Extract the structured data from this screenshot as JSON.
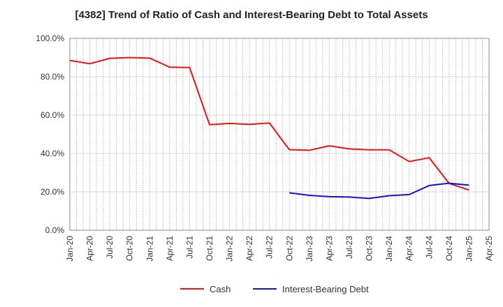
{
  "chart_data": {
    "type": "line",
    "title": "[4382]  Trend of Ratio of Cash and Interest-Bearing Debt to Total Assets",
    "xlabel": "",
    "ylabel": "",
    "x_ticks": [
      "Jan-20",
      "Apr-20",
      "Jul-20",
      "Oct-20",
      "Jan-21",
      "Apr-21",
      "Jul-21",
      "Oct-21",
      "Jan-22",
      "Apr-22",
      "Jul-22",
      "Oct-22",
      "Jan-23",
      "Apr-23",
      "Jul-23",
      "Oct-23",
      "Jan-24",
      "Apr-24",
      "Jul-24",
      "Oct-24",
      "Jan-25",
      "Apr-25"
    ],
    "y_ticks": [
      "0.0%",
      "20.0%",
      "40.0%",
      "60.0%",
      "80.0%",
      "100.0%"
    ],
    "ylim": [
      0,
      100
    ],
    "grid": true,
    "legend_position": "bottom",
    "series": [
      {
        "name": "Cash",
        "color": "#ee1111",
        "x": [
          "Jan-20",
          "Apr-20",
          "Jul-20",
          "Oct-20",
          "Jan-21",
          "Apr-21",
          "Jul-21",
          "Oct-21",
          "Jan-22",
          "Apr-22",
          "Jul-22",
          "Sep-22",
          "Oct-22",
          "Jan-23",
          "Apr-23",
          "Jul-23",
          "Oct-23",
          "Jan-24",
          "Apr-24",
          "Jul-24",
          "Oct-24",
          "Jan-25"
        ],
        "values": [
          88.5,
          86.8,
          89.6,
          90.0,
          89.7,
          85.0,
          84.8,
          55.0,
          55.7,
          55.2,
          55.9,
          46.5,
          42.0,
          41.7,
          44.0,
          42.4,
          41.9,
          41.9,
          35.8,
          37.8,
          24.4,
          21.0
        ]
      },
      {
        "name": "Interest-Bearing Debt",
        "color": "#1111dd",
        "x": [
          "Oct-22",
          "Jan-23",
          "Apr-23",
          "Jul-23",
          "Oct-23",
          "Jan-24",
          "Apr-24",
          "Jul-24",
          "Oct-24",
          "Jan-25"
        ],
        "values": [
          19.5,
          18.2,
          17.5,
          17.3,
          16.6,
          18.0,
          18.6,
          23.3,
          24.5,
          23.5
        ]
      }
    ]
  }
}
